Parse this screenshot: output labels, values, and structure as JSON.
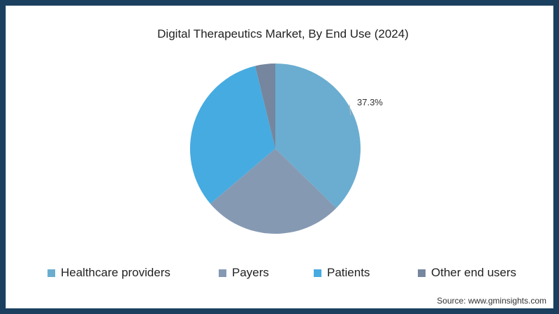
{
  "chart_data": {
    "type": "pie",
    "title": "Digital Therapeutics Market, By End Use (2024)",
    "categories": [
      "Healthcare providers",
      "Payers",
      "Patients",
      "Other end users"
    ],
    "values": [
      37.3,
      26.5,
      32.4,
      3.8
    ],
    "colors": [
      "#6aadd0",
      "#8699b3",
      "#46abe0",
      "#75869e"
    ],
    "data_labels": [
      {
        "category": "Healthcare providers",
        "label": "37.3%"
      }
    ],
    "start_angle": "12 o'clock, clockwise",
    "legend_position": "bottom"
  },
  "title": "Digital Therapeutics Market, By End Use (2024)",
  "label": "37.3%",
  "legend": [
    {
      "label": "Healthcare providers",
      "color": "#6aadd0"
    },
    {
      "label": "Payers",
      "color": "#8699b3"
    },
    {
      "label": "Patients",
      "color": "#46abe0"
    },
    {
      "label": "Other end users",
      "color": "#75869e"
    }
  ],
  "source": "Source: www.gminsights.com"
}
